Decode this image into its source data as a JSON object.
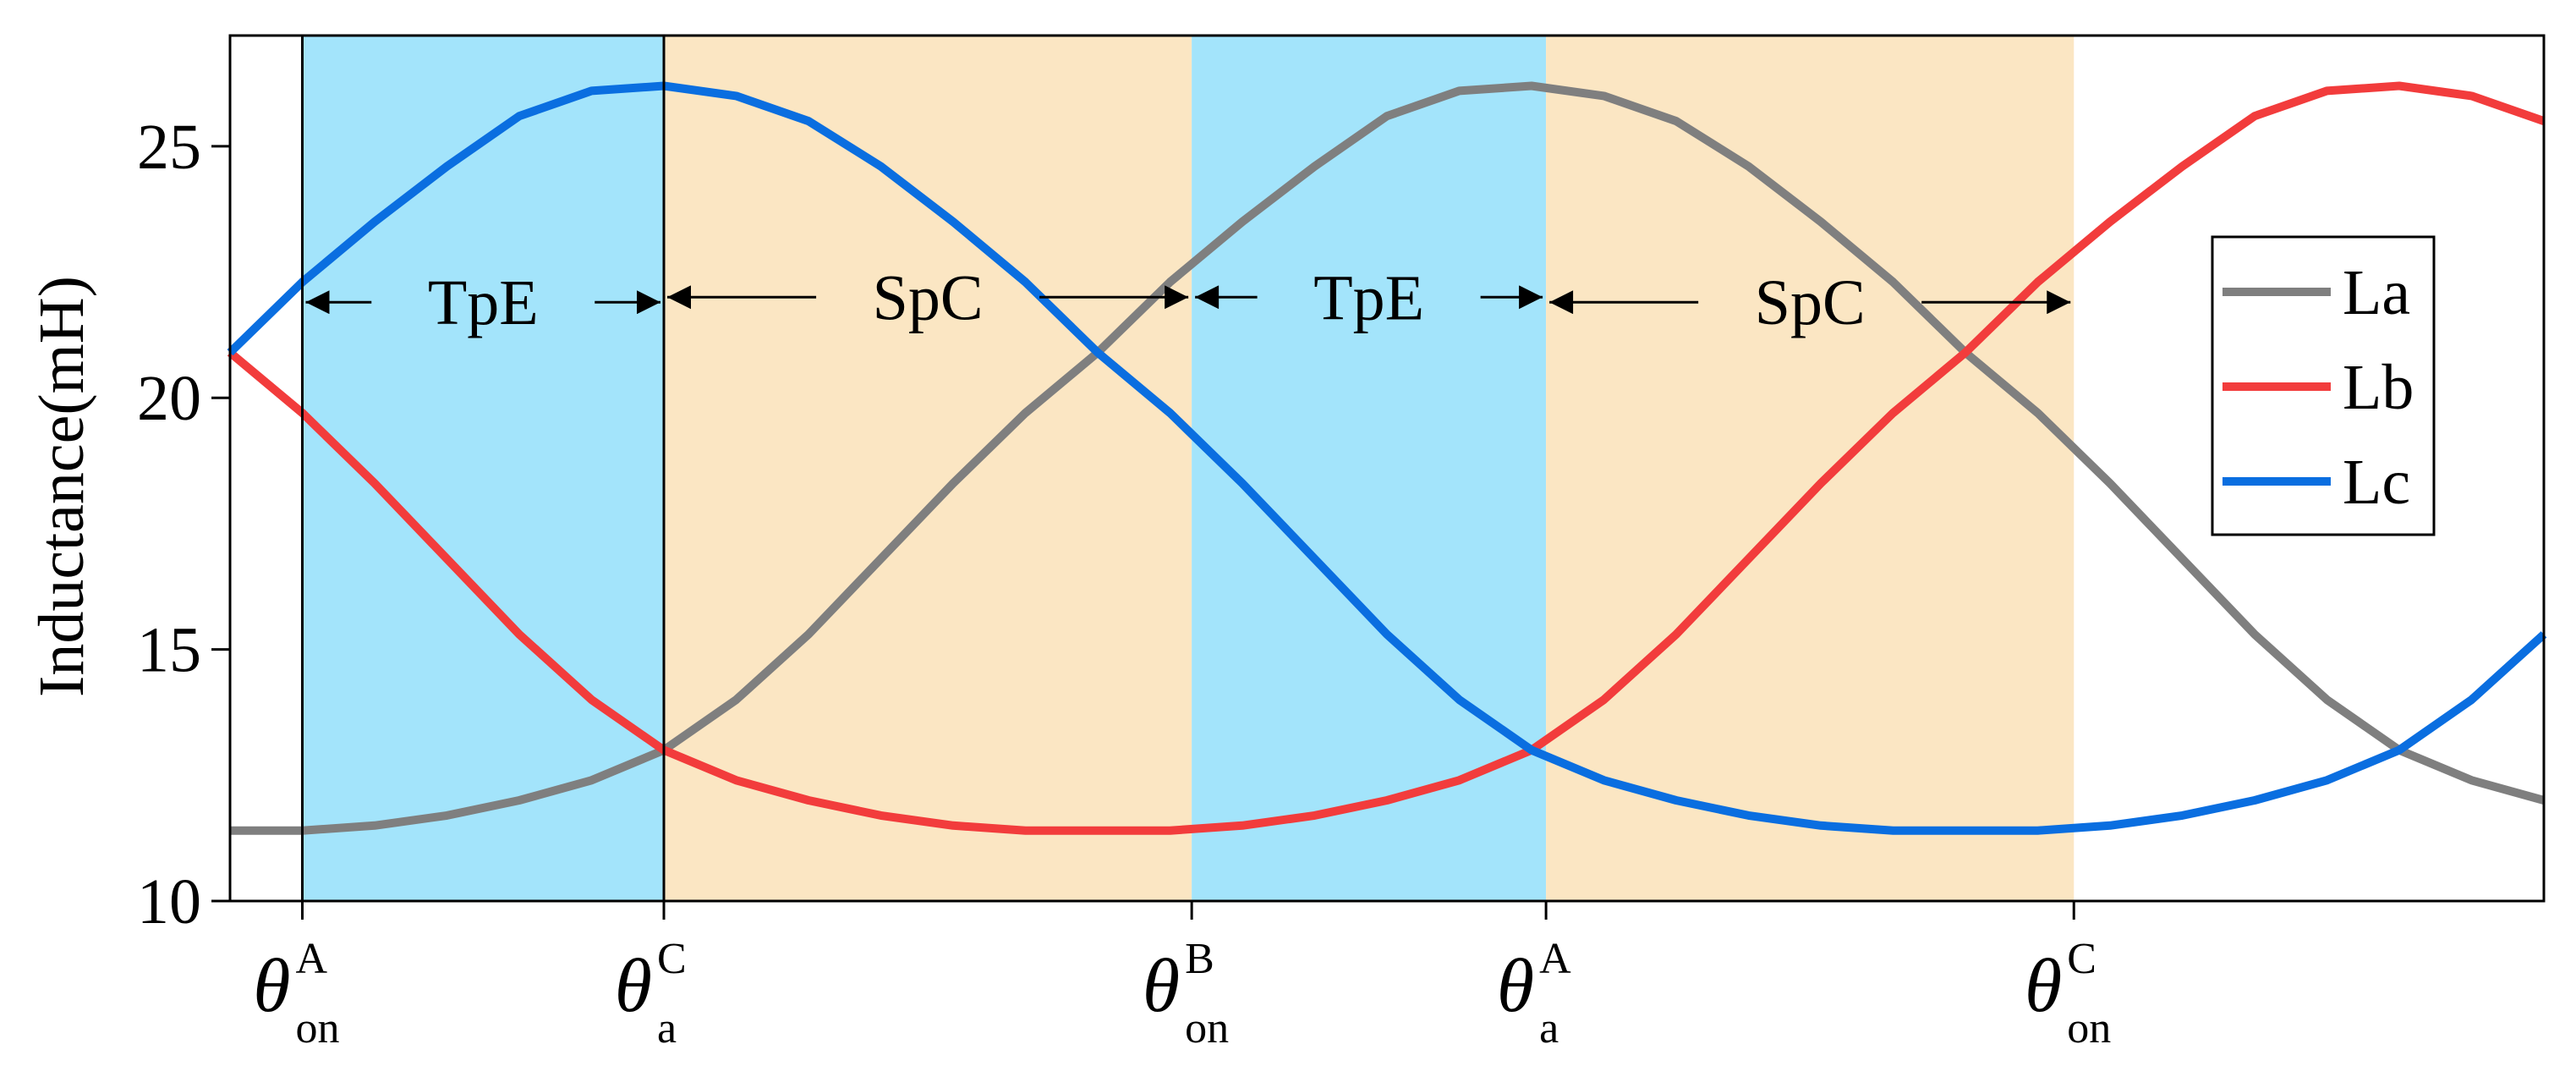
{
  "chart_data": {
    "type": "line",
    "title": "",
    "xlabel": "",
    "ylabel": "Inductance(mH)",
    "ylim": [
      10,
      27.2
    ],
    "xlim": [
      -1,
      31
    ],
    "yticks": [
      10,
      15,
      20,
      25
    ],
    "grid": false,
    "legend": {
      "position": "right"
    },
    "x": [
      -1,
      0,
      1,
      2,
      3,
      4,
      5,
      6,
      7,
      8,
      9,
      10,
      11,
      12,
      13,
      14,
      15,
      16,
      17,
      18,
      19,
      20,
      21,
      22,
      23,
      24,
      25,
      26,
      27,
      28,
      29,
      30,
      31
    ],
    "series": [
      {
        "name": "La",
        "color": "#7f7f7f",
        "values": [
          11.4,
          11.4,
          11.5,
          11.7,
          12.0,
          12.4,
          13.0,
          14.0,
          15.3,
          16.8,
          18.3,
          19.7,
          20.9,
          22.3,
          23.5,
          24.6,
          25.6,
          26.1,
          26.2,
          26.0,
          25.5,
          24.6,
          23.5,
          22.3,
          20.9,
          19.7,
          18.3,
          16.8,
          15.3,
          14.0,
          13.0,
          12.4,
          12.0
        ]
      },
      {
        "name": "Lb",
        "color": "#f23c3c",
        "values": [
          20.9,
          19.7,
          18.3,
          16.8,
          15.3,
          14.0,
          13.0,
          12.4,
          12.0,
          11.7,
          11.5,
          11.4,
          11.4,
          11.4,
          11.5,
          11.7,
          12.0,
          12.4,
          13.0,
          14.0,
          15.3,
          16.8,
          18.3,
          19.7,
          20.9,
          22.3,
          23.5,
          24.6,
          25.6,
          26.1,
          26.2,
          26.0,
          25.5
        ]
      },
      {
        "name": "Lc",
        "color": "#0a6ee0",
        "values": [
          20.9,
          22.3,
          23.5,
          24.6,
          25.6,
          26.1,
          26.2,
          26.0,
          25.5,
          24.6,
          23.5,
          22.3,
          20.9,
          19.7,
          18.3,
          16.8,
          15.3,
          14.0,
          13.0,
          12.4,
          12.0,
          11.7,
          11.5,
          11.4,
          11.4,
          11.4,
          11.5,
          11.7,
          12.0,
          12.4,
          13.0,
          14.0,
          15.3
        ]
      }
    ],
    "regions": [
      {
        "label": "TpE",
        "x0": 0,
        "x1": 5,
        "color": "#a3e4fb",
        "arrow_y": 21.9
      },
      {
        "label": "SpC",
        "x0": 5,
        "x1": 12.3,
        "color": "#fbe6c3",
        "arrow_y": 22.0
      },
      {
        "label": "TpE",
        "x0": 12.3,
        "x1": 17.2,
        "color": "#a3e4fb",
        "arrow_y": 22.0
      },
      {
        "label": "SpC",
        "x0": 17.2,
        "x1": 24.5,
        "color": "#fbe6c3",
        "arrow_y": 21.9
      }
    ],
    "highlight_box": {
      "x0": 0,
      "x1": 5
    },
    "xtick_markers": [
      {
        "x": 0,
        "symbol": "θ",
        "sup": "A",
        "sub": "on"
      },
      {
        "x": 5,
        "symbol": "θ",
        "sup": "C",
        "sub": "a"
      },
      {
        "x": 12.3,
        "symbol": "θ",
        "sup": "B",
        "sub": "on"
      },
      {
        "x": 17.2,
        "symbol": "θ",
        "sup": "A",
        "sub": "a"
      },
      {
        "x": 24.5,
        "symbol": "θ",
        "sup": "C",
        "sub": "on"
      }
    ]
  }
}
